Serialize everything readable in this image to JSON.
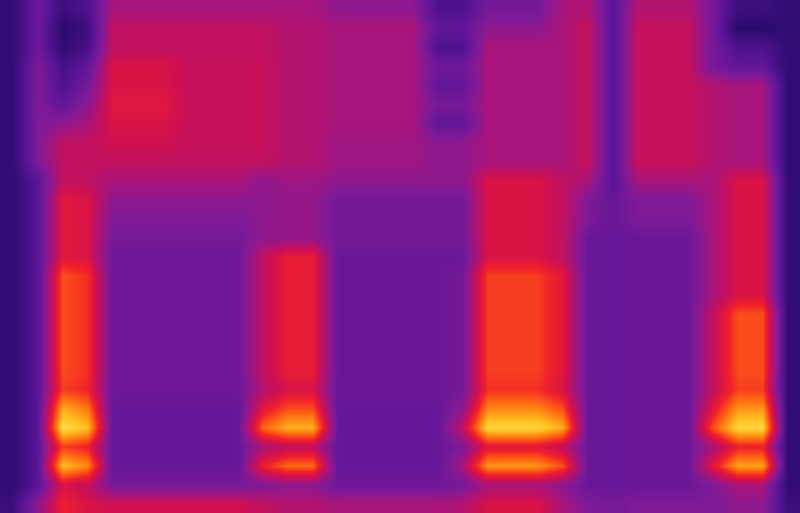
{
  "chart_data": {
    "type": "heatmap",
    "tick_labels": false,
    "zlim": [
      0,
      1
    ],
    "z": [
      [
        0.22,
        0.38,
        0.25,
        0.3,
        0.5,
        0.5,
        0.5,
        0.5,
        0.5,
        0.5,
        0.5,
        0.5,
        0.5,
        0.45,
        0.45,
        0.45,
        0.45,
        0.3,
        0.3,
        0.4,
        0.4,
        0.4,
        0.5,
        0.52,
        0.32,
        0.52,
        0.52,
        0.52,
        0.4,
        0.25,
        0.25,
        0.22
      ],
      [
        0.22,
        0.38,
        0.2,
        0.25,
        0.55,
        0.55,
        0.55,
        0.55,
        0.55,
        0.55,
        0.55,
        0.52,
        0.52,
        0.5,
        0.5,
        0.5,
        0.5,
        0.35,
        0.35,
        0.45,
        0.45,
        0.45,
        0.5,
        0.56,
        0.32,
        0.56,
        0.56,
        0.56,
        0.4,
        0.2,
        0.2,
        0.22
      ],
      [
        0.22,
        0.38,
        0.22,
        0.28,
        0.55,
        0.55,
        0.55,
        0.55,
        0.55,
        0.55,
        0.55,
        0.52,
        0.52,
        0.5,
        0.5,
        0.5,
        0.5,
        0.3,
        0.3,
        0.5,
        0.5,
        0.5,
        0.5,
        0.56,
        0.32,
        0.56,
        0.56,
        0.56,
        0.4,
        0.3,
        0.3,
        0.22
      ],
      [
        0.22,
        0.42,
        0.28,
        0.35,
        0.6,
        0.6,
        0.6,
        0.56,
        0.56,
        0.56,
        0.56,
        0.52,
        0.52,
        0.5,
        0.5,
        0.5,
        0.5,
        0.38,
        0.38,
        0.5,
        0.5,
        0.5,
        0.5,
        0.56,
        0.32,
        0.56,
        0.56,
        0.56,
        0.4,
        0.35,
        0.35,
        0.22
      ],
      [
        0.22,
        0.42,
        0.3,
        0.4,
        0.6,
        0.6,
        0.6,
        0.56,
        0.56,
        0.56,
        0.56,
        0.52,
        0.52,
        0.5,
        0.5,
        0.5,
        0.5,
        0.35,
        0.35,
        0.5,
        0.5,
        0.5,
        0.5,
        0.56,
        0.32,
        0.56,
        0.56,
        0.56,
        0.52,
        0.5,
        0.5,
        0.22
      ],
      [
        0.22,
        0.42,
        0.35,
        0.45,
        0.62,
        0.62,
        0.62,
        0.56,
        0.56,
        0.56,
        0.56,
        0.52,
        0.52,
        0.5,
        0.5,
        0.5,
        0.5,
        0.4,
        0.4,
        0.5,
        0.5,
        0.5,
        0.5,
        0.56,
        0.32,
        0.56,
        0.56,
        0.56,
        0.52,
        0.5,
        0.5,
        0.22
      ],
      [
        0.22,
        0.42,
        0.45,
        0.5,
        0.6,
        0.6,
        0.6,
        0.56,
        0.56,
        0.56,
        0.56,
        0.52,
        0.52,
        0.5,
        0.5,
        0.5,
        0.5,
        0.35,
        0.35,
        0.5,
        0.5,
        0.5,
        0.5,
        0.56,
        0.32,
        0.56,
        0.56,
        0.56,
        0.52,
        0.5,
        0.5,
        0.22
      ],
      [
        0.22,
        0.42,
        0.55,
        0.55,
        0.58,
        0.58,
        0.58,
        0.56,
        0.56,
        0.56,
        0.56,
        0.52,
        0.52,
        0.48,
        0.48,
        0.48,
        0.48,
        0.45,
        0.45,
        0.5,
        0.5,
        0.5,
        0.5,
        0.56,
        0.32,
        0.56,
        0.56,
        0.56,
        0.52,
        0.5,
        0.5,
        0.22
      ],
      [
        0.22,
        0.42,
        0.55,
        0.55,
        0.55,
        0.55,
        0.55,
        0.55,
        0.55,
        0.55,
        0.55,
        0.52,
        0.52,
        0.48,
        0.48,
        0.48,
        0.48,
        0.45,
        0.45,
        0.5,
        0.5,
        0.5,
        0.5,
        0.56,
        0.32,
        0.56,
        0.56,
        0.56,
        0.52,
        0.5,
        0.5,
        0.22
      ],
      [
        0.22,
        0.33,
        0.55,
        0.55,
        0.5,
        0.5,
        0.5,
        0.5,
        0.5,
        0.5,
        0.45,
        0.48,
        0.48,
        0.45,
        0.45,
        0.45,
        0.45,
        0.45,
        0.45,
        0.6,
        0.6,
        0.6,
        0.55,
        0.5,
        0.32,
        0.5,
        0.5,
        0.5,
        0.5,
        0.6,
        0.6,
        0.22
      ],
      [
        0.22,
        0.33,
        0.62,
        0.6,
        0.45,
        0.45,
        0.45,
        0.45,
        0.45,
        0.45,
        0.45,
        0.46,
        0.46,
        0.4,
        0.4,
        0.4,
        0.4,
        0.4,
        0.4,
        0.6,
        0.6,
        0.6,
        0.55,
        0.42,
        0.36,
        0.42,
        0.42,
        0.42,
        0.5,
        0.6,
        0.6,
        0.22
      ],
      [
        0.22,
        0.33,
        0.62,
        0.6,
        0.42,
        0.42,
        0.42,
        0.42,
        0.42,
        0.42,
        0.45,
        0.46,
        0.46,
        0.4,
        0.4,
        0.4,
        0.4,
        0.4,
        0.4,
        0.6,
        0.6,
        0.6,
        0.55,
        0.42,
        0.36,
        0.42,
        0.42,
        0.42,
        0.5,
        0.6,
        0.6,
        0.22
      ],
      [
        0.22,
        0.33,
        0.62,
        0.6,
        0.4,
        0.4,
        0.4,
        0.4,
        0.4,
        0.4,
        0.45,
        0.46,
        0.46,
        0.4,
        0.4,
        0.4,
        0.4,
        0.4,
        0.4,
        0.6,
        0.6,
        0.6,
        0.55,
        0.37,
        0.36,
        0.37,
        0.37,
        0.37,
        0.5,
        0.6,
        0.6,
        0.22
      ],
      [
        0.22,
        0.33,
        0.62,
        0.6,
        0.38,
        0.38,
        0.38,
        0.38,
        0.38,
        0.38,
        0.55,
        0.64,
        0.64,
        0.37,
        0.37,
        0.37,
        0.37,
        0.37,
        0.37,
        0.6,
        0.6,
        0.6,
        0.55,
        0.37,
        0.36,
        0.37,
        0.37,
        0.37,
        0.5,
        0.6,
        0.6,
        0.22
      ],
      [
        0.22,
        0.33,
        0.72,
        0.68,
        0.38,
        0.38,
        0.38,
        0.38,
        0.38,
        0.38,
        0.55,
        0.64,
        0.64,
        0.37,
        0.37,
        0.37,
        0.37,
        0.37,
        0.4,
        0.7,
        0.7,
        0.7,
        0.62,
        0.37,
        0.36,
        0.37,
        0.37,
        0.37,
        0.5,
        0.6,
        0.6,
        0.22
      ],
      [
        0.22,
        0.33,
        0.72,
        0.68,
        0.38,
        0.38,
        0.38,
        0.38,
        0.38,
        0.38,
        0.55,
        0.64,
        0.64,
        0.37,
        0.37,
        0.37,
        0.37,
        0.37,
        0.4,
        0.7,
        0.7,
        0.7,
        0.62,
        0.37,
        0.36,
        0.37,
        0.37,
        0.37,
        0.5,
        0.6,
        0.6,
        0.22
      ],
      [
        0.22,
        0.33,
        0.72,
        0.68,
        0.38,
        0.38,
        0.38,
        0.38,
        0.38,
        0.38,
        0.55,
        0.64,
        0.64,
        0.37,
        0.37,
        0.37,
        0.37,
        0.37,
        0.4,
        0.7,
        0.7,
        0.7,
        0.62,
        0.37,
        0.36,
        0.37,
        0.37,
        0.37,
        0.55,
        0.72,
        0.72,
        0.22
      ],
      [
        0.22,
        0.33,
        0.72,
        0.68,
        0.38,
        0.38,
        0.38,
        0.38,
        0.38,
        0.38,
        0.55,
        0.64,
        0.64,
        0.37,
        0.37,
        0.37,
        0.37,
        0.37,
        0.4,
        0.7,
        0.7,
        0.7,
        0.62,
        0.37,
        0.36,
        0.37,
        0.37,
        0.37,
        0.55,
        0.72,
        0.72,
        0.22
      ],
      [
        0.22,
        0.33,
        0.72,
        0.68,
        0.38,
        0.38,
        0.38,
        0.38,
        0.38,
        0.38,
        0.55,
        0.64,
        0.64,
        0.37,
        0.37,
        0.37,
        0.37,
        0.37,
        0.4,
        0.7,
        0.7,
        0.7,
        0.62,
        0.37,
        0.36,
        0.37,
        0.37,
        0.37,
        0.55,
        0.72,
        0.72,
        0.22
      ],
      [
        0.22,
        0.33,
        0.72,
        0.68,
        0.38,
        0.38,
        0.38,
        0.38,
        0.38,
        0.38,
        0.55,
        0.64,
        0.64,
        0.37,
        0.37,
        0.37,
        0.37,
        0.37,
        0.4,
        0.7,
        0.7,
        0.7,
        0.62,
        0.37,
        0.36,
        0.37,
        0.37,
        0.37,
        0.55,
        0.72,
        0.72,
        0.22
      ],
      [
        0.22,
        0.33,
        0.7,
        0.66,
        0.38,
        0.38,
        0.38,
        0.38,
        0.38,
        0.38,
        0.52,
        0.6,
        0.6,
        0.37,
        0.37,
        0.37,
        0.37,
        0.37,
        0.4,
        0.68,
        0.68,
        0.68,
        0.6,
        0.37,
        0.36,
        0.37,
        0.37,
        0.37,
        0.55,
        0.7,
        0.7,
        0.22
      ],
      [
        0.22,
        0.33,
        0.85,
        0.78,
        0.36,
        0.36,
        0.36,
        0.36,
        0.36,
        0.36,
        0.62,
        0.72,
        0.72,
        0.36,
        0.36,
        0.36,
        0.36,
        0.36,
        0.45,
        0.8,
        0.8,
        0.8,
        0.72,
        0.37,
        0.36,
        0.37,
        0.37,
        0.37,
        0.62,
        0.82,
        0.82,
        0.22
      ],
      [
        0.22,
        0.33,
        0.95,
        0.88,
        0.36,
        0.36,
        0.36,
        0.36,
        0.36,
        0.36,
        0.75,
        0.86,
        0.86,
        0.36,
        0.36,
        0.36,
        0.36,
        0.36,
        0.55,
        0.93,
        0.93,
        0.93,
        0.85,
        0.37,
        0.36,
        0.37,
        0.37,
        0.37,
        0.72,
        0.93,
        0.93,
        0.22
      ],
      [
        0.22,
        0.33,
        0.7,
        0.65,
        0.36,
        0.36,
        0.36,
        0.36,
        0.36,
        0.36,
        0.5,
        0.55,
        0.55,
        0.36,
        0.36,
        0.36,
        0.36,
        0.36,
        0.42,
        0.62,
        0.62,
        0.62,
        0.55,
        0.37,
        0.36,
        0.37,
        0.37,
        0.37,
        0.5,
        0.65,
        0.65,
        0.22
      ],
      [
        0.22,
        0.33,
        0.88,
        0.8,
        0.36,
        0.36,
        0.36,
        0.36,
        0.36,
        0.36,
        0.65,
        0.76,
        0.76,
        0.36,
        0.36,
        0.36,
        0.36,
        0.36,
        0.5,
        0.82,
        0.82,
        0.82,
        0.72,
        0.37,
        0.36,
        0.37,
        0.37,
        0.37,
        0.62,
        0.84,
        0.84,
        0.22
      ],
      [
        0.22,
        0.33,
        0.6,
        0.55,
        0.4,
        0.4,
        0.4,
        0.4,
        0.4,
        0.4,
        0.42,
        0.45,
        0.45,
        0.38,
        0.38,
        0.38,
        0.38,
        0.38,
        0.4,
        0.5,
        0.5,
        0.5,
        0.45,
        0.37,
        0.36,
        0.37,
        0.37,
        0.37,
        0.42,
        0.5,
        0.5,
        0.22
      ],
      [
        0.25,
        0.45,
        0.65,
        0.6,
        0.58,
        0.58,
        0.58,
        0.58,
        0.58,
        0.58,
        0.55,
        0.52,
        0.52,
        0.5,
        0.5,
        0.5,
        0.5,
        0.5,
        0.52,
        0.6,
        0.6,
        0.6,
        0.5,
        0.42,
        0.4,
        0.42,
        0.42,
        0.42,
        0.42,
        0.45,
        0.45,
        0.25
      ]
    ]
  }
}
